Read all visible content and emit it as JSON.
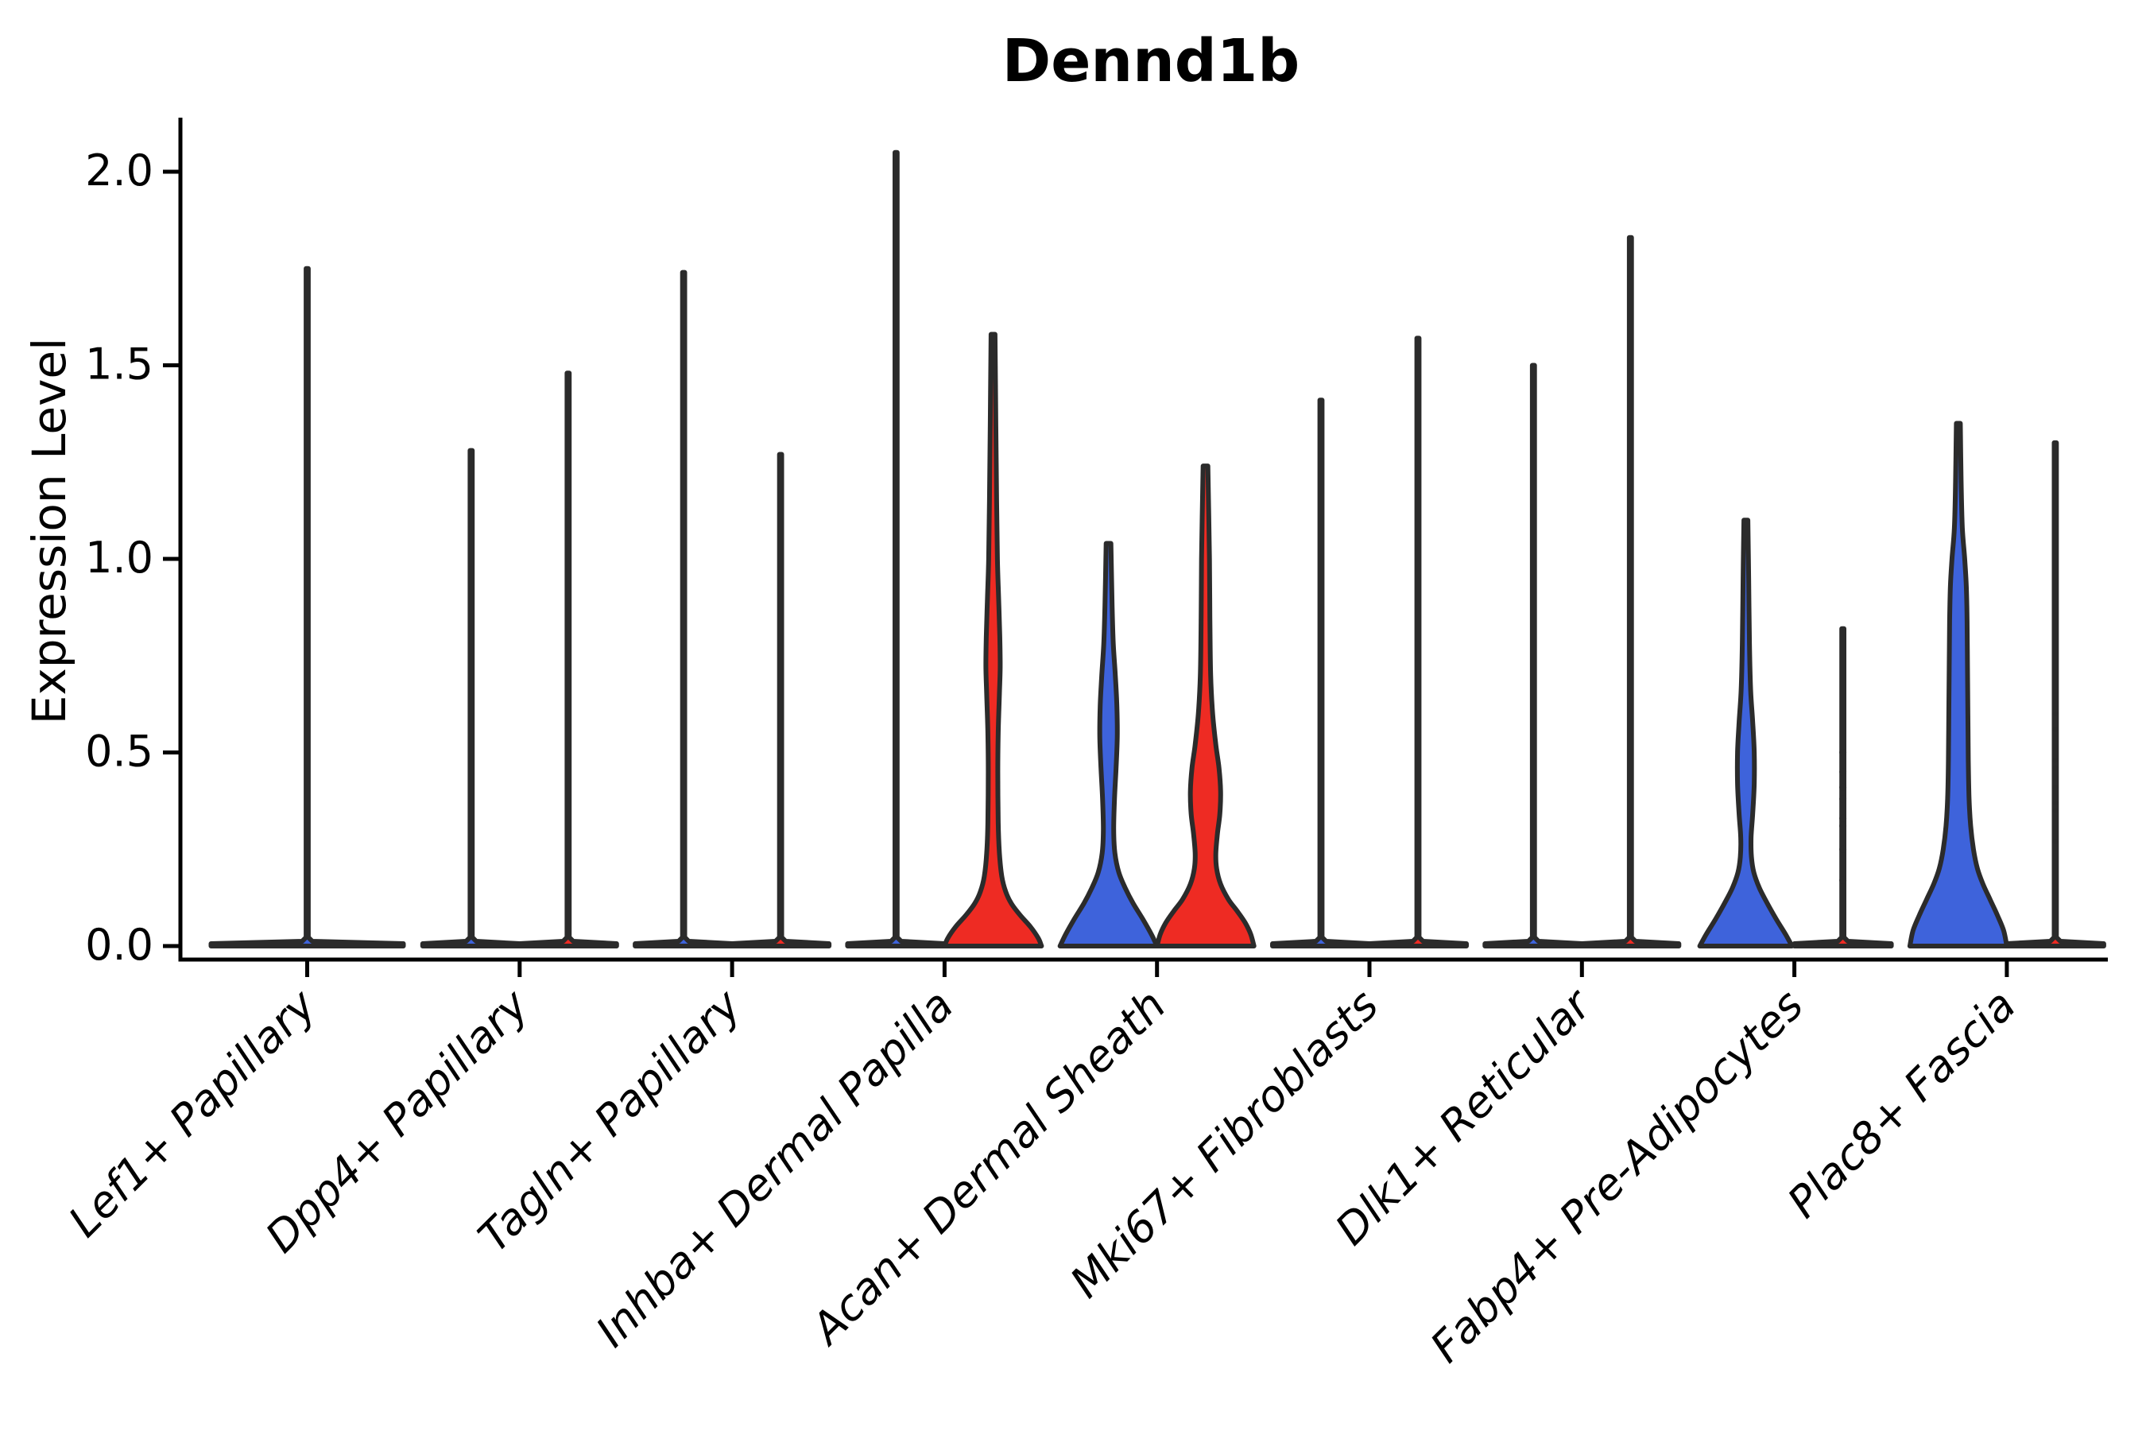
{
  "title": "Dennd1b",
  "ylabel": "Expression Level",
  "colors": {
    "red": "#EE2B23",
    "blue": "#3E63DB",
    "outline": "#2B2B2B",
    "axis": "#000000",
    "dot": "#2B2B2B",
    "background": "#FFFFFF",
    "text": "#000000"
  },
  "chart_data": {
    "type": "violin",
    "title": "Dennd1b",
    "xlabel": "",
    "ylabel": "Expression Level",
    "ylim": [
      -0.04,
      2.14
    ],
    "yticks": [
      0.0,
      0.5,
      1.0,
      1.5,
      2.0
    ],
    "ytick_labels": [
      "0.0",
      "0.5",
      "1.0",
      "1.5",
      "2.0"
    ],
    "grid": false,
    "legend": null,
    "categories": [
      "Lef1+ Papillary",
      "Dpp4+ Papillary",
      "Tagln+ Papillary",
      "Inhba+ Dermal Papilla",
      "Acan+ Dermal Sheath",
      "Mki67+ Fibroblasts",
      "Dlk1+ Reticular",
      "Fabp4+ Pre-Adipocytes",
      "Plac8+ Fascia"
    ],
    "violins": [
      {
        "category_index": 0,
        "category": "Lef1+ Papillary",
        "side": "single",
        "color": "blue",
        "style": "spike",
        "max": 1.75,
        "base_halfwidth": 121,
        "bulk_at_zero": true
      },
      {
        "category_index": 1,
        "category": "Dpp4+ Papillary",
        "side": "left",
        "color": "blue",
        "style": "spike",
        "max": 1.28,
        "base_halfwidth": 61,
        "bulk_at_zero": true
      },
      {
        "category_index": 1,
        "category": "Dpp4+ Papillary",
        "side": "right",
        "color": "red",
        "style": "spike",
        "max": 1.48,
        "base_halfwidth": 61,
        "bulk_at_zero": true
      },
      {
        "category_index": 2,
        "category": "Tagln+ Papillary",
        "side": "left",
        "color": "blue",
        "style": "spike",
        "max": 1.74,
        "base_halfwidth": 61,
        "bulk_at_zero": true
      },
      {
        "category_index": 2,
        "category": "Tagln+ Papillary",
        "side": "right",
        "color": "red",
        "style": "spike",
        "max": 1.27,
        "base_halfwidth": 61,
        "bulk_at_zero": true
      },
      {
        "category_index": 3,
        "category": "Inhba+ Dermal Papilla",
        "side": "left",
        "color": "blue",
        "style": "spike",
        "max": 2.05,
        "base_halfwidth": 61,
        "bulk_at_zero": true
      },
      {
        "category_index": 3,
        "category": "Inhba+ Dermal Papilla",
        "side": "right",
        "color": "red",
        "style": "shaped",
        "max": 1.58,
        "profile": [
          [
            0,
            61
          ],
          [
            0.02,
            57
          ],
          [
            0.05,
            47
          ],
          [
            0.08,
            34
          ],
          [
            0.11,
            23
          ],
          [
            0.14,
            16
          ],
          [
            0.18,
            11
          ],
          [
            0.24,
            8
          ],
          [
            0.32,
            6.5
          ],
          [
            0.45,
            6
          ],
          [
            0.55,
            6.5
          ],
          [
            0.65,
            8
          ],
          [
            0.72,
            9
          ],
          [
            0.8,
            8.5
          ],
          [
            0.9,
            7
          ],
          [
            1.0,
            5.5
          ],
          [
            1.15,
            4.5
          ],
          [
            1.35,
            3.5
          ],
          [
            1.58,
            2.5
          ]
        ]
      },
      {
        "category_index": 4,
        "category": "Acan+ Dermal Sheath",
        "side": "left",
        "color": "blue",
        "style": "shaped",
        "max": 1.04,
        "profile": [
          [
            0,
            61
          ],
          [
            0.03,
            54
          ],
          [
            0.07,
            43
          ],
          [
            0.11,
            31
          ],
          [
            0.15,
            21
          ],
          [
            0.19,
            13
          ],
          [
            0.24,
            8
          ],
          [
            0.3,
            6.5
          ],
          [
            0.38,
            7.5
          ],
          [
            0.46,
            9.5
          ],
          [
            0.54,
            11
          ],
          [
            0.62,
            10.5
          ],
          [
            0.7,
            8.5
          ],
          [
            0.78,
            6
          ],
          [
            0.88,
            4.5
          ],
          [
            1.04,
            3
          ]
        ]
      },
      {
        "category_index": 4,
        "category": "Acan+ Dermal Sheath",
        "side": "right",
        "color": "red",
        "style": "shaped",
        "max": 1.24,
        "profile": [
          [
            0,
            61
          ],
          [
            0.03,
            57
          ],
          [
            0.06,
            50
          ],
          [
            0.09,
            40
          ],
          [
            0.12,
            29
          ],
          [
            0.16,
            19
          ],
          [
            0.2,
            14
          ],
          [
            0.24,
            13
          ],
          [
            0.29,
            15
          ],
          [
            0.34,
            18
          ],
          [
            0.4,
            19
          ],
          [
            0.46,
            17
          ],
          [
            0.52,
            13
          ],
          [
            0.6,
            9
          ],
          [
            0.7,
            6.5
          ],
          [
            0.85,
            5.5
          ],
          [
            1.0,
            5
          ],
          [
            1.24,
            3
          ]
        ]
      },
      {
        "category_index": 5,
        "category": "Mki67+ Fibroblasts",
        "side": "left",
        "color": "blue",
        "style": "spike",
        "max": 1.41,
        "base_halfwidth": 61,
        "bulk_at_zero": true
      },
      {
        "category_index": 5,
        "category": "Mki67+ Fibroblasts",
        "side": "right",
        "color": "red",
        "style": "spike",
        "max": 1.57,
        "base_halfwidth": 61,
        "bulk_at_zero": true
      },
      {
        "category_index": 6,
        "category": "Dlk1+ Reticular",
        "side": "left",
        "color": "blue",
        "style": "spike",
        "max": 1.5,
        "base_halfwidth": 61,
        "bulk_at_zero": true
      },
      {
        "category_index": 6,
        "category": "Dlk1+ Reticular",
        "side": "right",
        "color": "red",
        "style": "spike",
        "max": 1.83,
        "base_halfwidth": 61,
        "bulk_at_zero": true
      },
      {
        "category_index": 7,
        "category": "Fabp4+ Pre-Adipocytes",
        "side": "left",
        "color": "blue",
        "style": "shaped",
        "max": 1.1,
        "profile": [
          [
            0,
            58
          ],
          [
            0.03,
            50
          ],
          [
            0.07,
            38
          ],
          [
            0.11,
            27
          ],
          [
            0.15,
            17
          ],
          [
            0.19,
            10
          ],
          [
            0.23,
            7
          ],
          [
            0.28,
            6.5
          ],
          [
            0.34,
            8.5
          ],
          [
            0.42,
            10.5
          ],
          [
            0.5,
            10.5
          ],
          [
            0.58,
            8.5
          ],
          [
            0.66,
            6
          ],
          [
            0.78,
            4.5
          ],
          [
            0.95,
            3.5
          ],
          [
            1.1,
            2.5
          ]
        ]
      },
      {
        "category_index": 7,
        "category": "Fabp4+ Pre-Adipocytes",
        "side": "right",
        "color": "red",
        "style": "spike",
        "max": 0.82,
        "base_halfwidth": 61,
        "bulk_at_zero": true,
        "dots": [
          0.17,
          0.25,
          0.31,
          0.33,
          0.38,
          0.41,
          0.45,
          0.5
        ],
        "dot_radius": 4.5,
        "dot_opacity": 0.9
      },
      {
        "category_index": 8,
        "category": "Plac8+ Fascia",
        "side": "left",
        "color": "blue",
        "style": "shaped",
        "max": 1.35,
        "profile": [
          [
            0,
            61
          ],
          [
            0.04,
            57
          ],
          [
            0.08,
            49
          ],
          [
            0.12,
            40
          ],
          [
            0.16,
            31
          ],
          [
            0.2,
            24
          ],
          [
            0.25,
            19
          ],
          [
            0.31,
            15.5
          ],
          [
            0.38,
            13.5
          ],
          [
            0.48,
            12.5
          ],
          [
            0.6,
            12
          ],
          [
            0.72,
            11.5
          ],
          [
            0.84,
            11
          ],
          [
            0.93,
            10
          ],
          [
            1.0,
            8
          ],
          [
            1.08,
            5
          ],
          [
            1.2,
            3.5
          ],
          [
            1.35,
            2.5
          ]
        ]
      },
      {
        "category_index": 8,
        "category": "Plac8+ Fascia",
        "side": "right",
        "color": "red",
        "style": "spike",
        "max": 1.3,
        "base_halfwidth": 61,
        "bulk_at_zero": true,
        "dots": [
          0.27,
          0.35,
          0.37,
          0.41,
          0.46,
          0.48,
          0.56,
          0.6
        ],
        "dot_radius": 3.2,
        "dot_opacity": 0.45
      }
    ]
  }
}
